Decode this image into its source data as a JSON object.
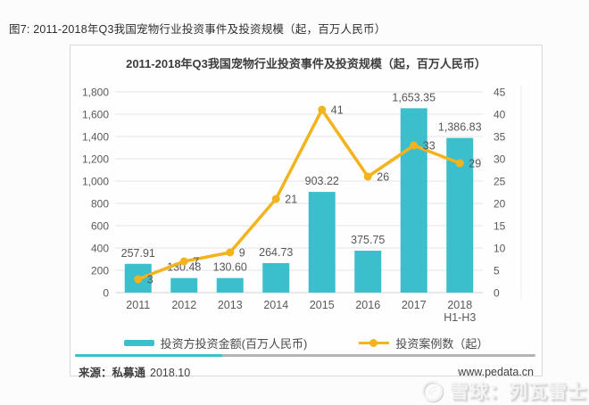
{
  "page": {
    "caption": "图7: 2011-2018年Q3我国宠物行业投资事件及投资规模（起，百万人民币）"
  },
  "chart": {
    "title": "2011-2018年Q3我国宠物行业投资事件及投资规模（起，百万人民币）",
    "source_label": "来源：私募通",
    "source_date": "2018.10",
    "website": "www.pedata.cn"
  },
  "chart_data": {
    "type": "bar+line combo",
    "title": "2011-2018年Q3我国宠物行业投资事件及投资规模（起，百万人民币）",
    "categories": [
      "2011",
      "2012",
      "2013",
      "2014",
      "2015",
      "2016",
      "2017",
      "2018 H1-H3"
    ],
    "series": [
      {
        "name": "投资方投资金额(百万人民币)",
        "type": "bar",
        "axis": "left",
        "color": "#3BBFCD",
        "values": [
          257.91,
          130.48,
          130.6,
          264.73,
          903.22,
          375.75,
          1653.35,
          1386.83
        ],
        "labels": [
          "257.91",
          "130.48",
          "130.60",
          "264.73",
          "903.22",
          "375.75",
          "1,653.35",
          "1,386.83"
        ]
      },
      {
        "name": "投资案例数（起）",
        "type": "line",
        "axis": "right",
        "color": "#F2B31C",
        "values": [
          3,
          7,
          9,
          21,
          41,
          26,
          33,
          29
        ],
        "labels": [
          "3",
          "7",
          "9",
          "21",
          "41",
          "26",
          "33",
          "29"
        ]
      }
    ],
    "left_axis": {
      "min": 0,
      "max": 1800,
      "step": 200,
      "ticks": [
        "0",
        "200",
        "400",
        "600",
        "800",
        "1,000",
        "1,200",
        "1,400",
        "1,600",
        "1,800"
      ]
    },
    "right_axis": {
      "min": 0,
      "max": 45,
      "step": 5,
      "ticks": [
        "0",
        "5",
        "10",
        "15",
        "20",
        "25",
        "30",
        "35",
        "40",
        "45"
      ]
    },
    "grid": true,
    "legend_position": "bottom"
  },
  "colors": {
    "bar_teal": "#3BBFCD",
    "line_gold": "#F2B31C"
  },
  "watermark": {
    "text": "雪球：列瓦雷士"
  }
}
